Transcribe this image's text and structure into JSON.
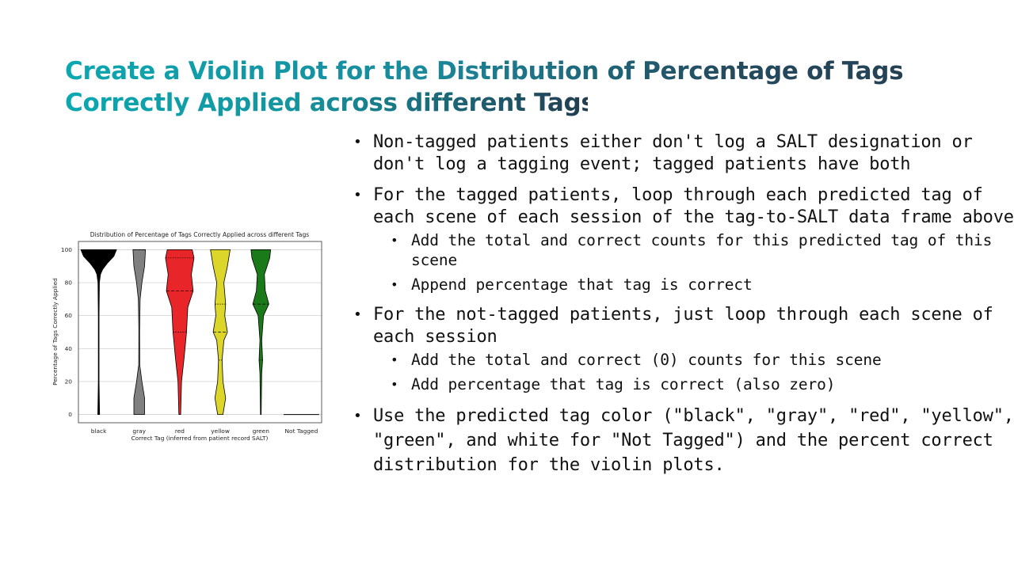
{
  "title": {
    "line1": "Create a Violin Plot for the Distribution of Percentage of Tags",
    "line2": "Correctly Applied across different Tags"
  },
  "bullets": [
    {
      "text": "Non-tagged patients either don't log a SALT designation or don't log a tagging event; tagged patients have both",
      "sub": []
    },
    {
      "text": "For the tagged patients, loop through each predicted tag of each scene of each session of the tag-to-SALT data frame above",
      "sub": [
        "Add the total and correct counts for this predicted tag of this scene",
        "Append percentage that tag is correct"
      ]
    },
    {
      "text": "For the not-tagged patients, just loop through each scene of each session",
      "sub": [
        "Add the total and correct (0) counts for this scene",
        "Add percentage that tag is correct (also zero)"
      ]
    },
    {
      "text": "Use the predicted tag color (\"black\", \"gray\", \"red\", \"yellow\", \"green\", and white for \"Not Tagged\") and the percent correct distribution for the violin plots.",
      "sub": []
    }
  ],
  "chart_data": {
    "type": "violin",
    "title": "Distribution of Percentage of Tags Correctly Applied across different Tags",
    "xlabel": "Correct Tag (inferred from patient record SALT)",
    "ylabel": "Percentage of Tags Correctly Applied",
    "ylim": [
      -5,
      105
    ],
    "yticks": [
      0,
      20,
      40,
      60,
      80,
      100
    ],
    "grid": true,
    "categories": [
      "black",
      "gray",
      "red",
      "yellow",
      "green",
      "Not Tagged"
    ],
    "violins": [
      {
        "category": "black",
        "color": "#000000",
        "range": [
          0,
          100
        ],
        "quartiles": [
          100,
          100,
          100
        ],
        "profile": [
          [
            0,
            0.05
          ],
          [
            20,
            0.02
          ],
          [
            40,
            0.02
          ],
          [
            60,
            0.02
          ],
          [
            80,
            0.04
          ],
          [
            85,
            0.1
          ],
          [
            88,
            0.22
          ],
          [
            92,
            0.5
          ],
          [
            96,
            0.85
          ],
          [
            100,
            1.0
          ]
        ]
      },
      {
        "category": "gray",
        "color": "#808080",
        "range": [
          0,
          100
        ],
        "quartiles": [
          100,
          100,
          100
        ],
        "profile": [
          [
            0,
            0.3
          ],
          [
            10,
            0.3
          ],
          [
            20,
            0.15
          ],
          [
            30,
            0.03
          ],
          [
            50,
            0.02
          ],
          [
            70,
            0.05
          ],
          [
            80,
            0.15
          ],
          [
            90,
            0.3
          ],
          [
            100,
            0.35
          ]
        ]
      },
      {
        "category": "red",
        "color": "#e8262a",
        "range": [
          0,
          100
        ],
        "quartiles": [
          50,
          75,
          95
        ],
        "profile": [
          [
            0,
            0.05
          ],
          [
            20,
            0.1
          ],
          [
            35,
            0.25
          ],
          [
            50,
            0.38
          ],
          [
            65,
            0.45
          ],
          [
            75,
            0.75
          ],
          [
            85,
            0.65
          ],
          [
            95,
            0.8
          ],
          [
            100,
            0.7
          ]
        ]
      },
      {
        "category": "yellow",
        "color": "#dcd52a",
        "range": [
          0,
          100
        ],
        "quartiles": [
          33,
          50,
          67
        ],
        "profile": [
          [
            0,
            0.15
          ],
          [
            10,
            0.3
          ],
          [
            20,
            0.15
          ],
          [
            33,
            0.1
          ],
          [
            45,
            0.2
          ],
          [
            50,
            0.4
          ],
          [
            60,
            0.25
          ],
          [
            67,
            0.3
          ],
          [
            80,
            0.2
          ],
          [
            90,
            0.4
          ],
          [
            100,
            0.55
          ]
        ]
      },
      {
        "category": "green",
        "color": "#1a7a1a",
        "range": [
          0,
          100
        ],
        "quartiles": [
          33,
          67,
          100
        ],
        "profile": [
          [
            0,
            0.02
          ],
          [
            25,
            0.05
          ],
          [
            33,
            0.1
          ],
          [
            45,
            0.05
          ],
          [
            60,
            0.15
          ],
          [
            67,
            0.45
          ],
          [
            75,
            0.25
          ],
          [
            85,
            0.2
          ],
          [
            95,
            0.5
          ],
          [
            100,
            0.55
          ]
        ]
      },
      {
        "category": "Not Tagged",
        "color": "#ffffff",
        "range": [
          0,
          0
        ],
        "quartiles": [
          0,
          0,
          0
        ],
        "profile": [
          [
            0,
            1.0
          ]
        ]
      }
    ]
  }
}
